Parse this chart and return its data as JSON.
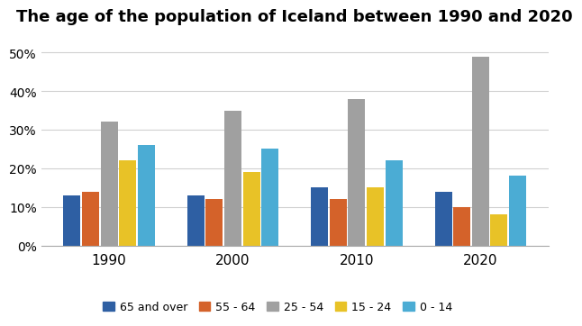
{
  "title": "The age of the population of Iceland between 1990 and 2020",
  "years": [
    "1990",
    "2000",
    "2010",
    "2020"
  ],
  "categories": [
    "65 and over",
    "55 - 64",
    "25 - 54",
    "15 - 24",
    "0 - 14"
  ],
  "colors": [
    "#2e5fa3",
    "#d4622a",
    "#a0a0a0",
    "#e8c227",
    "#4bacd4"
  ],
  "values": {
    "65 and over": [
      13,
      13,
      15,
      14
    ],
    "55 - 64": [
      14,
      12,
      12,
      10
    ],
    "25 - 54": [
      32,
      35,
      38,
      49
    ],
    "15 - 24": [
      22,
      19,
      15,
      8
    ],
    "0 - 14": [
      26,
      25,
      22,
      18
    ]
  },
  "ylim": [
    0,
    55
  ],
  "yticks": [
    0,
    10,
    20,
    30,
    40,
    50
  ],
  "background_color": "#ffffff",
  "grid_color": "#d0d0d0",
  "title_fontsize": 13
}
